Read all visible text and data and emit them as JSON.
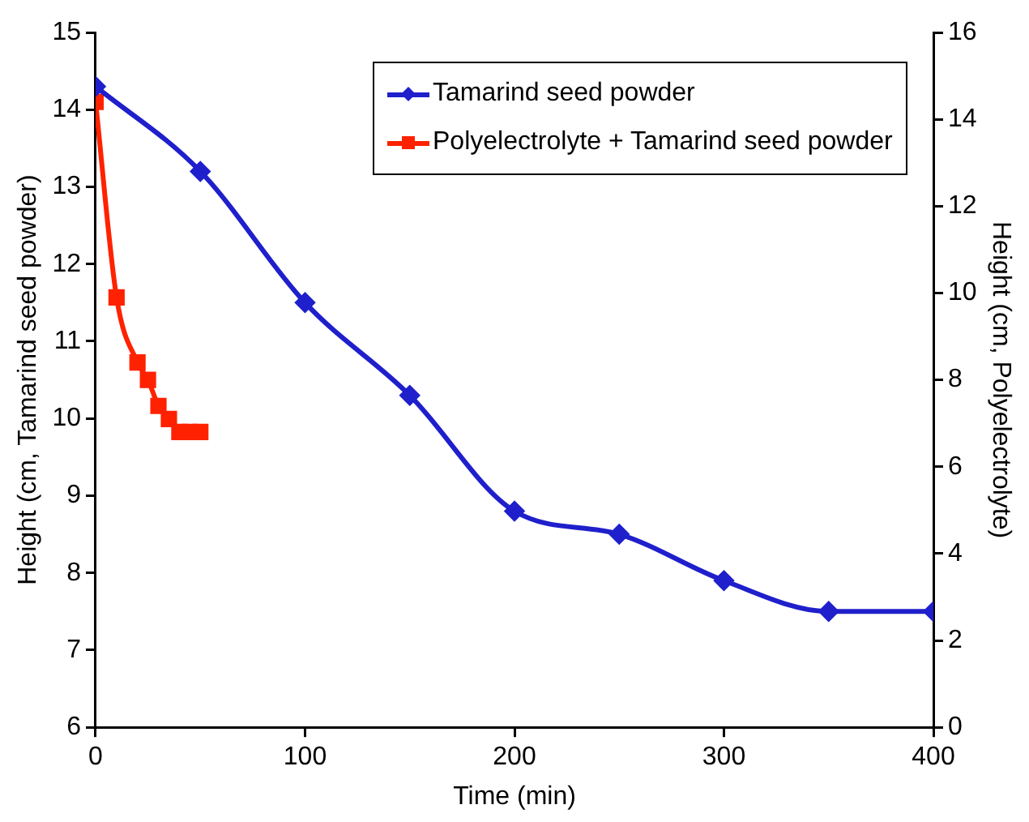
{
  "chart_data": {
    "type": "line",
    "xlabel": "Time (min)",
    "ylabel": "Height (cm, Tamarind seed powder)",
    "y2label": "Height (cm, Polyelectrolyte)",
    "xlim": [
      0,
      400
    ],
    "xticks": [
      0,
      100,
      200,
      300,
      400
    ],
    "ylim": [
      6,
      15
    ],
    "yticks": [
      6,
      7,
      8,
      9,
      10,
      11,
      12,
      13,
      14,
      15
    ],
    "y2lim": [
      0,
      16
    ],
    "y2ticks": [
      0,
      2,
      4,
      6,
      8,
      10,
      12,
      14,
      16
    ],
    "grid": false,
    "legend": "top right",
    "line_style": "solid",
    "series": [
      {
        "name": "Tamarind seed powder",
        "color": "#1f1fcc",
        "marker": "diamond",
        "x": [
          0,
          50,
          100,
          150,
          200,
          250,
          300,
          350,
          400
        ],
        "values": [
          14.3,
          13.2,
          11.5,
          10.3,
          8.8,
          8.5,
          7.9,
          7.5,
          7.5
        ]
      },
      {
        "name": "Polyelectrolyte + Tamarind seed powder",
        "color": "#ff2200",
        "marker": "square",
        "axis": "y2",
        "x": [
          0,
          10,
          20,
          25,
          30,
          35,
          40,
          45,
          50
        ],
        "values": [
          14.4,
          9.9,
          8.4,
          8.0,
          7.4,
          7.1,
          6.8,
          6.8,
          6.8
        ]
      }
    ]
  }
}
